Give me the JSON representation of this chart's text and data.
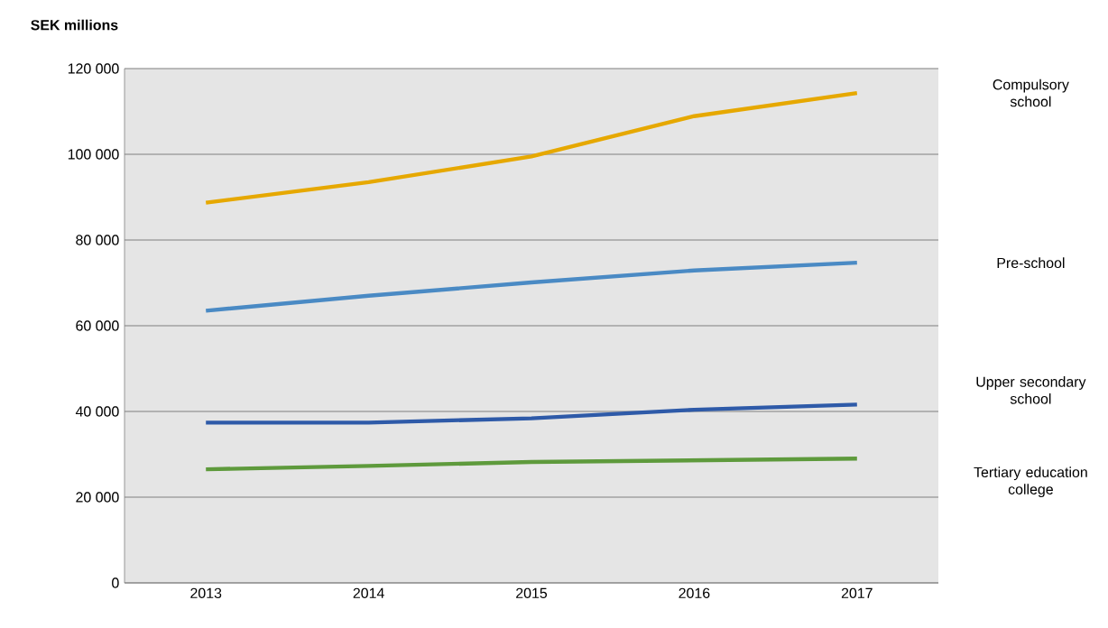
{
  "chart_data": {
    "type": "line",
    "ylabel": "SEK millions",
    "categories": [
      "2013",
      "2014",
      "2015",
      "2016",
      "2017"
    ],
    "series": [
      {
        "name": "Compulsory school",
        "color": "#e6a800",
        "values": [
          88700,
          93500,
          99500,
          108900,
          114300
        ]
      },
      {
        "name": "Pre-school",
        "color": "#4a8ac4",
        "values": [
          63500,
          67000,
          70100,
          72900,
          74700
        ]
      },
      {
        "name": "Upper secondary school",
        "color": "#2e5aa8",
        "values": [
          37400,
          37400,
          38400,
          40400,
          41600
        ]
      },
      {
        "name": "Tertiary education college",
        "color": "#5e9a3c",
        "values": [
          26500,
          27300,
          28200,
          28600,
          29000
        ]
      }
    ],
    "ylim": [
      0,
      120000
    ],
    "yticks": [
      {
        "value": 0,
        "label": "0"
      },
      {
        "value": 20000,
        "label": "20 000"
      },
      {
        "value": 40000,
        "label": "40 000"
      },
      {
        "value": 60000,
        "label": "60 000"
      },
      {
        "value": 80000,
        "label": "80 000"
      },
      {
        "value": 100000,
        "label": "100 000"
      },
      {
        "value": 120000,
        "label": "120 000"
      }
    ],
    "grid": "y",
    "marker": "none",
    "line_style": "solid"
  }
}
